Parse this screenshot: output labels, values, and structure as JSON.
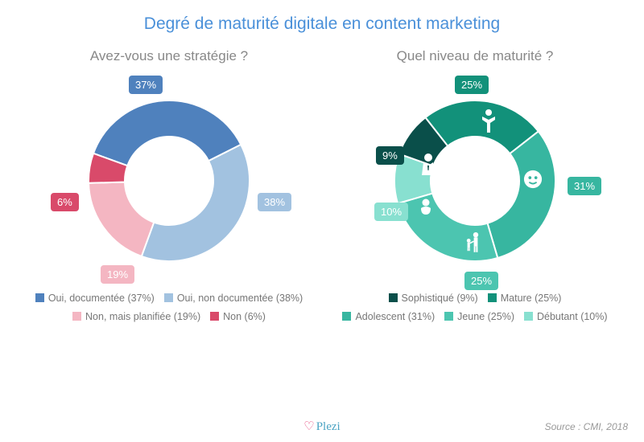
{
  "title": "Degré de maturité digitale en content marketing",
  "source": "Source : CMI, 2018",
  "brand": "Plezi",
  "left_chart": {
    "type": "donut",
    "subtitle": "Avez-vous une stratégie ?",
    "inner_radius": 55,
    "outer_radius": 100,
    "background_color": "#ffffff",
    "slices": [
      {
        "label": "Oui, documentée",
        "value": 37,
        "color": "#4f81bd",
        "bubble": "37%"
      },
      {
        "label": "Oui, non documentée",
        "value": 38,
        "color": "#a2c2e0",
        "bubble": "38%"
      },
      {
        "label": "Non, mais planifiée",
        "value": 19,
        "color": "#f4b6c2",
        "bubble": "19%"
      },
      {
        "label": "Non",
        "value": 6,
        "color": "#d94a6a",
        "bubble": "6%"
      }
    ]
  },
  "right_chart": {
    "type": "donut",
    "subtitle": "Quel niveau de maturité ?",
    "inner_radius": 55,
    "outer_radius": 100,
    "background_color": "#ffffff",
    "slices": [
      {
        "label": "Mature",
        "value": 25,
        "color": "#12917a",
        "bubble": "25%",
        "icon": "person-arms-up"
      },
      {
        "label": "Adolescent",
        "value": 31,
        "color": "#37b6a0",
        "bubble": "31%",
        "icon": "face"
      },
      {
        "label": "Jeune",
        "value": 25,
        "color": "#4cc5b0",
        "bubble": "25%",
        "icon": "adult-child"
      },
      {
        "label": "Débutant",
        "value": 10,
        "color": "#88e0d0",
        "bubble": "10%",
        "icon": "baby"
      },
      {
        "label": "Sophistiqué",
        "value": 9,
        "color": "#0a4f4a",
        "bubble": "9%",
        "icon": "suit"
      }
    ]
  },
  "legend_label_font_size": 12.5,
  "legend_color": "#777777",
  "title_color": "#4a90d9"
}
